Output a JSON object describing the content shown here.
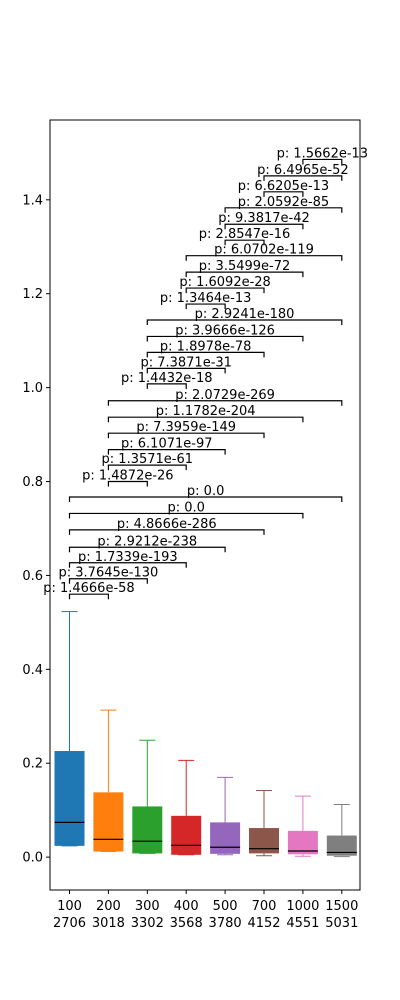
{
  "chart_data": {
    "type": "box",
    "title": "",
    "xlabel": "",
    "ylabel": "",
    "ylim": [
      -0.07,
      1.57
    ],
    "yticks": [
      0.0,
      0.2,
      0.4,
      0.6,
      0.8,
      1.0,
      1.2,
      1.4
    ],
    "ytick_labels": [
      "0.0",
      "0.2",
      "0.4",
      "0.6",
      "0.8",
      "1.0",
      "1.2",
      "1.4"
    ],
    "categories": [
      "100",
      "200",
      "300",
      "400",
      "500",
      "700",
      "1000",
      "1500"
    ],
    "counts": [
      "2706",
      "3018",
      "3302",
      "3568",
      "3780",
      "4152",
      "4551",
      "5031"
    ],
    "colors": [
      "#1f77b4",
      "#ff7f0e",
      "#2ca02c",
      "#d62728",
      "#9467bd",
      "#8c564b",
      "#e377c2",
      "#7f7f7f"
    ],
    "boxes": [
      {
        "q1": 0.024,
        "median": 0.074,
        "q3": 0.226,
        "whisker_low": 0.024,
        "whisker_high": 0.523
      },
      {
        "q1": 0.012,
        "median": 0.038,
        "q3": 0.138,
        "whisker_low": 0.012,
        "whisker_high": 0.313
      },
      {
        "q1": 0.008,
        "median": 0.034,
        "q3": 0.108,
        "whisker_low": 0.008,
        "whisker_high": 0.249
      },
      {
        "q1": 0.005,
        "median": 0.025,
        "q3": 0.088,
        "whisker_low": 0.005,
        "whisker_high": 0.206
      },
      {
        "q1": 0.007,
        "median": 0.021,
        "q3": 0.074,
        "whisker_low": 0.005,
        "whisker_high": 0.17
      },
      {
        "q1": 0.008,
        "median": 0.018,
        "q3": 0.062,
        "whisker_low": 0.003,
        "whisker_high": 0.142
      },
      {
        "q1": 0.006,
        "median": 0.013,
        "q3": 0.056,
        "whisker_low": 0.002,
        "whisker_high": 0.13
      },
      {
        "q1": 0.003,
        "median": 0.01,
        "q3": 0.046,
        "whisker_low": 0.001,
        "whisker_high": 0.112
      }
    ],
    "comparisons": [
      {
        "from": 0,
        "to": 1,
        "y": 0.56,
        "label": "p: 1.4666e-58"
      },
      {
        "from": 0,
        "to": 2,
        "y": 0.593,
        "label": "p: 3.7645e-130"
      },
      {
        "from": 0,
        "to": 3,
        "y": 0.627,
        "label": "p: 1.7339e-193"
      },
      {
        "from": 0,
        "to": 4,
        "y": 0.66,
        "label": "p: 2.9212e-238"
      },
      {
        "from": 0,
        "to": 5,
        "y": 0.697,
        "label": "p: 4.8666e-286"
      },
      {
        "from": 0,
        "to": 6,
        "y": 0.732,
        "label": "p: 0.0"
      },
      {
        "from": 0,
        "to": 7,
        "y": 0.767,
        "label": "p: 0.0"
      },
      {
        "from": 1,
        "to": 2,
        "y": 0.8,
        "label": "p: 1.4872e-26"
      },
      {
        "from": 1,
        "to": 3,
        "y": 0.835,
        "label": "p: 1.3571e-61"
      },
      {
        "from": 1,
        "to": 4,
        "y": 0.868,
        "label": "p: 6.1071e-97"
      },
      {
        "from": 1,
        "to": 5,
        "y": 0.903,
        "label": "p: 7.3959e-149"
      },
      {
        "from": 1,
        "to": 6,
        "y": 0.937,
        "label": "p: 1.1782e-204"
      },
      {
        "from": 1,
        "to": 7,
        "y": 0.972,
        "label": "p: 2.0729e-269"
      },
      {
        "from": 2,
        "to": 3,
        "y": 1.008,
        "label": "p: 1.4432e-18"
      },
      {
        "from": 2,
        "to": 4,
        "y": 1.041,
        "label": "p: 7.3871e-31"
      },
      {
        "from": 2,
        "to": 5,
        "y": 1.075,
        "label": "p: 1.8978e-78"
      },
      {
        "from": 2,
        "to": 6,
        "y": 1.109,
        "label": "p: 3.9666e-126"
      },
      {
        "from": 2,
        "to": 7,
        "y": 1.144,
        "label": "p: 2.9241e-180"
      },
      {
        "from": 3,
        "to": 4,
        "y": 1.178,
        "label": "p: 1.3464e-13"
      },
      {
        "from": 3,
        "to": 5,
        "y": 1.212,
        "label": "p: 1.6092e-28"
      },
      {
        "from": 3,
        "to": 6,
        "y": 1.246,
        "label": "p: 3.5499e-72"
      },
      {
        "from": 3,
        "to": 7,
        "y": 1.281,
        "label": "p: 6.0702e-119"
      },
      {
        "from": 4,
        "to": 5,
        "y": 1.314,
        "label": "p: 2.8547e-16"
      },
      {
        "from": 4,
        "to": 6,
        "y": 1.348,
        "label": "p: 9.3817e-42"
      },
      {
        "from": 4,
        "to": 7,
        "y": 1.383,
        "label": "p: 2.0592e-85"
      },
      {
        "from": 5,
        "to": 6,
        "y": 1.417,
        "label": "p: 6.6205e-13"
      },
      {
        "from": 5,
        "to": 7,
        "y": 1.451,
        "label": "p: 6.4965e-52"
      },
      {
        "from": 6,
        "to": 7,
        "y": 1.486,
        "label": "p: 1.5662e-13"
      }
    ]
  }
}
